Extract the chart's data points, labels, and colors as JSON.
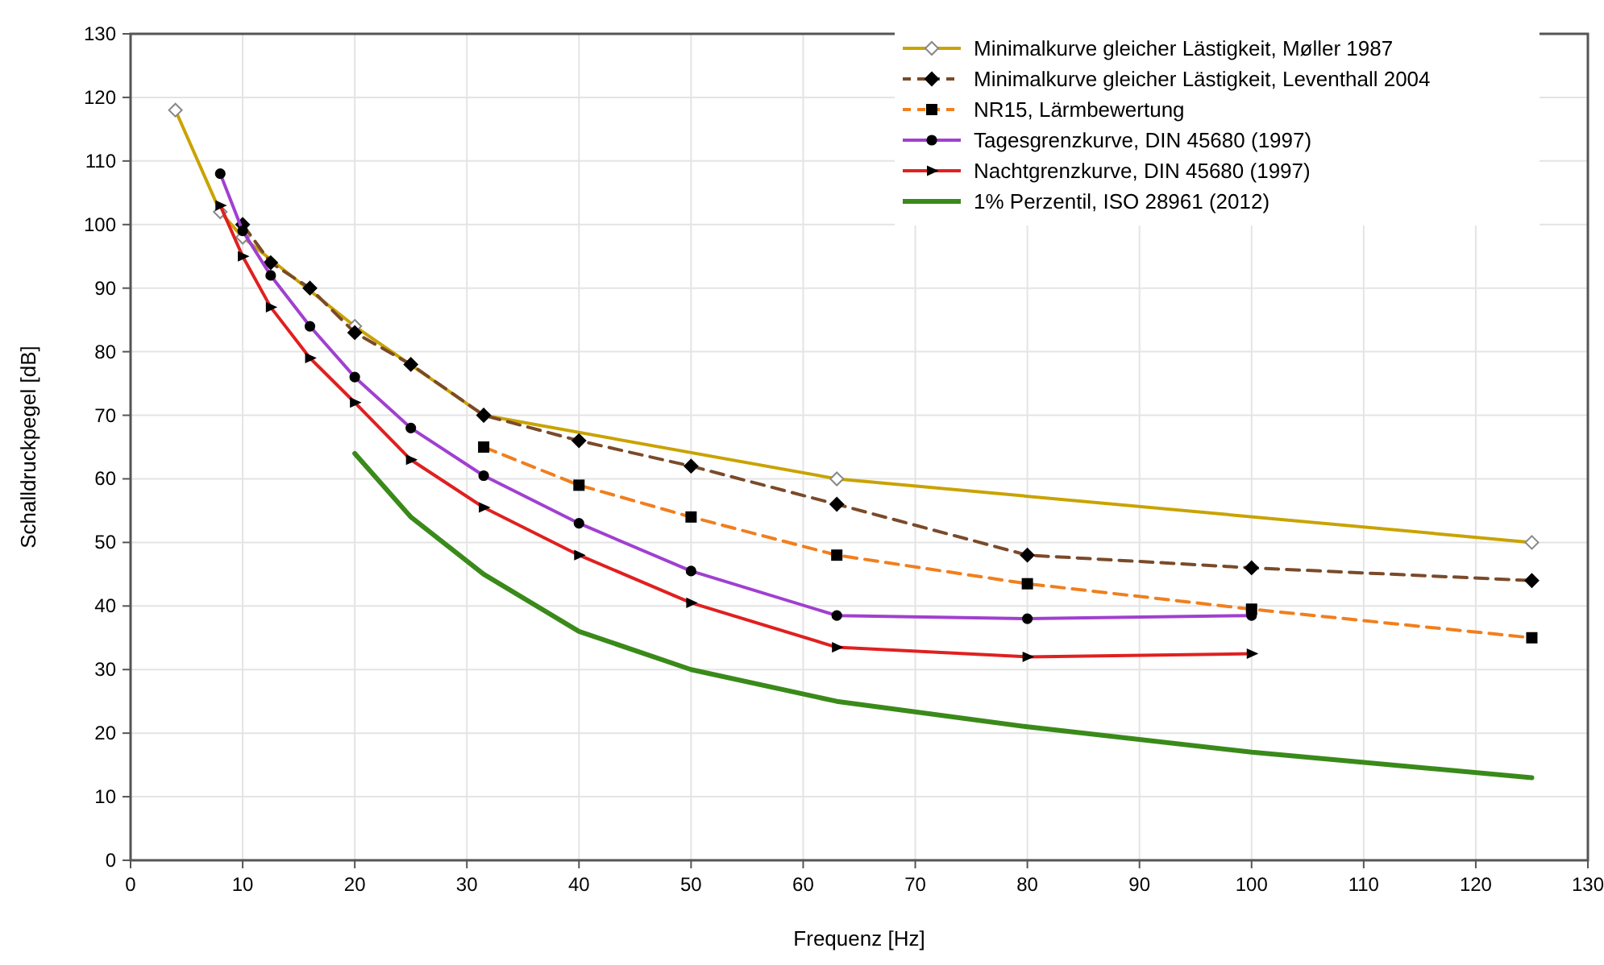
{
  "chart_data": {
    "type": "line",
    "xlabel": "Frequenz [Hz]",
    "ylabel": "Schalldruckpegel [dB]",
    "xlim": [
      0,
      130
    ],
    "xticks": [
      0,
      10,
      20,
      30,
      40,
      50,
      60,
      70,
      80,
      90,
      100,
      110,
      120,
      130
    ],
    "ylim": [
      0,
      130
    ],
    "yticks": [
      0,
      10,
      20,
      30,
      40,
      50,
      60,
      70,
      80,
      90,
      100,
      110,
      120,
      130
    ],
    "grid": true,
    "legend": "top right",
    "series": [
      {
        "name": "Minimalkurve gleicher Lästigkeit, Møller 1987",
        "color": "#c9a300",
        "marker": "diamond",
        "line_style": "solid",
        "x": [
          4,
          8,
          10,
          20,
          31.5,
          63,
          125
        ],
        "values": [
          118,
          102,
          98,
          84,
          70,
          60,
          50
        ]
      },
      {
        "name": "Minimalkurve gleicher Lästigkeit, Leventhall 2004",
        "color": "#7a4a2a",
        "marker": "diamond",
        "line_style": "dashed",
        "x": [
          10,
          12.5,
          16,
          20,
          25,
          31.5,
          40,
          50,
          63,
          80,
          100,
          125
        ],
        "values": [
          100,
          94,
          90,
          83,
          78,
          70,
          66,
          62,
          56,
          48,
          46,
          44
        ]
      },
      {
        "name": "NR15, Lärmbewertung",
        "color": "#f07f1e",
        "marker": "square",
        "line_style": "dashed",
        "x": [
          31.5,
          40,
          50,
          63,
          80,
          100,
          125
        ],
        "values": [
          65,
          59,
          54,
          48,
          43.5,
          39.5,
          35
        ]
      },
      {
        "name": "Tagesgrenzkurve, DIN 45680 (1997)",
        "color": "#a040d0",
        "marker": "circle",
        "line_style": "solid",
        "x": [
          8,
          10,
          12.5,
          16,
          20,
          25,
          31.5,
          40,
          50,
          63,
          80,
          100
        ],
        "values": [
          108,
          99,
          92,
          84,
          76,
          68,
          60.5,
          53,
          45.5,
          38.5,
          38,
          38.5
        ]
      },
      {
        "name": "Nachtgrenzkurve, DIN 45680 (1997)",
        "color": "#e02020",
        "marker": "triangle",
        "line_style": "solid",
        "x": [
          8,
          10,
          12.5,
          16,
          20,
          25,
          31.5,
          40,
          50,
          63,
          80,
          100
        ],
        "values": [
          103,
          95,
          87,
          79,
          72,
          63,
          55.5,
          48,
          40.5,
          33.5,
          32,
          32.5
        ]
      },
      {
        "name": "1% Perzentil, ISO 28961 (2012)",
        "color": "#3a8a1a",
        "marker": "none",
        "line_style": "solid",
        "x": [
          20,
          25,
          31.5,
          40,
          50,
          63,
          80,
          100,
          125
        ],
        "values": [
          64,
          54,
          45,
          36,
          30,
          25,
          21,
          17,
          13
        ]
      }
    ]
  }
}
